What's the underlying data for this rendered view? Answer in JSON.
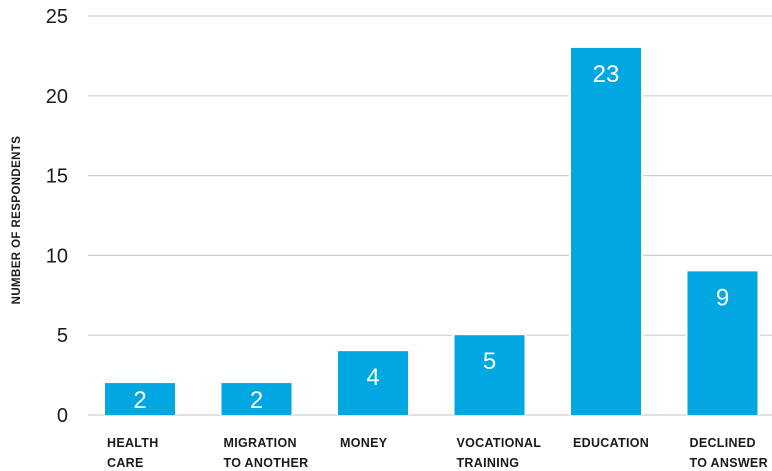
{
  "chart_data": {
    "type": "bar",
    "categories": [
      [
        "HEALTH",
        "CARE"
      ],
      [
        "MIGRATION",
        "TO ANOTHER"
      ],
      [
        "MONEY"
      ],
      [
        "VOCATIONAL",
        "TRAINING"
      ],
      [
        "EDUCATION"
      ],
      [
        "DECLINED",
        "TO ANSWER"
      ]
    ],
    "values": [
      2,
      2,
      4,
      5,
      23,
      9
    ],
    "data_labels": [
      "2",
      "2",
      "4",
      "5",
      "23",
      "9"
    ],
    "title": "",
    "xlabel": "",
    "ylabel": "NUMBER OF RESPONDENTS",
    "ylim": [
      0,
      25
    ],
    "yticks": [
      0,
      5,
      10,
      15,
      20,
      25
    ],
    "grid": true,
    "bar_color": "#00a7e1",
    "grid_color": "#cfcfcf"
  }
}
